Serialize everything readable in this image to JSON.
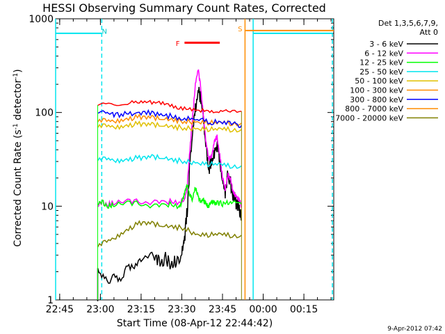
{
  "chart_data": {
    "type": "line",
    "title": "HESSI Observing Summary Count Rates, Corrected",
    "xlabel": "Start Time (08-Apr-12 22:44:42)",
    "ylabel_main": "Corrected Count Rate (s",
    "ylabel_sup1": "-1",
    "ylabel_mid": " detector",
    "ylabel_sup2": "-1",
    "ylabel_end": ")",
    "yscale": "log",
    "ylim": [
      1,
      1000
    ],
    "xlim_minutes": [
      -1.5,
      101
    ],
    "x_ticks": [
      {
        "label": "22:45",
        "m": 0
      },
      {
        "label": "23:00",
        "m": 15
      },
      {
        "label": "23:15",
        "m": 30
      },
      {
        "label": "23:30",
        "m": 45
      },
      {
        "label": "23:45",
        "m": 60
      },
      {
        "label": "00:00",
        "m": 75
      },
      {
        "label": "00:15",
        "m": 90
      }
    ],
    "y_ticks": [
      {
        "label": "1",
        "v": 1
      },
      {
        "label": "10",
        "v": 10
      },
      {
        "label": "100",
        "v": 100
      },
      {
        "label": "1000",
        "v": 1000
      }
    ],
    "legend_header": [
      "Det 1,3,5,6,7,9,",
      "Att 0"
    ],
    "series": [
      {
        "name": "3 - 6 keV",
        "color": "#000000",
        "points": [
          [
            14,
            1
          ],
          [
            14,
            2
          ],
          [
            17,
            1.5
          ],
          [
            20,
            2.2
          ],
          [
            23,
            1.6
          ],
          [
            26,
            2.4
          ],
          [
            29,
            2.8
          ],
          [
            32,
            2.5
          ],
          [
            35,
            3.0
          ],
          [
            37,
            2.6
          ],
          [
            39,
            2.8
          ],
          [
            41,
            2.5
          ],
          [
            43,
            2.6
          ],
          [
            45,
            3.0
          ],
          [
            46,
            4.5
          ],
          [
            47,
            9
          ],
          [
            48,
            30
          ],
          [
            49,
            60
          ],
          [
            50,
            110
          ],
          [
            51,
            170
          ],
          [
            52,
            140
          ],
          [
            53,
            80
          ],
          [
            54,
            40
          ],
          [
            55,
            25
          ],
          [
            56,
            30
          ],
          [
            57,
            38
          ],
          [
            58,
            45
          ],
          [
            59,
            30
          ],
          [
            60,
            18
          ],
          [
            61,
            14
          ],
          [
            62,
            22
          ],
          [
            63,
            18
          ],
          [
            64,
            12
          ],
          [
            65,
            11
          ],
          [
            66,
            10
          ],
          [
            67,
            7
          ]
        ]
      },
      {
        "name": "6 - 12 keV",
        "color": "#ff00ff",
        "points": [
          [
            14,
            10
          ],
          [
            16,
            11
          ],
          [
            18,
            10.5
          ],
          [
            20,
            11
          ],
          [
            25,
            11.5
          ],
          [
            30,
            11
          ],
          [
            35,
            11
          ],
          [
            40,
            11.2
          ],
          [
            44,
            11
          ],
          [
            46,
            12
          ],
          [
            47,
            16
          ],
          [
            48,
            40
          ],
          [
            49,
            90
          ],
          [
            50,
            200
          ],
          [
            51,
            290
          ],
          [
            52,
            180
          ],
          [
            53,
            90
          ],
          [
            54,
            45
          ],
          [
            55,
            32
          ],
          [
            56,
            34
          ],
          [
            57,
            48
          ],
          [
            58,
            55
          ],
          [
            59,
            35
          ],
          [
            60,
            20
          ],
          [
            61,
            15
          ],
          [
            62,
            22
          ],
          [
            63,
            19
          ],
          [
            64,
            14
          ],
          [
            65,
            13
          ],
          [
            66,
            12
          ],
          [
            67,
            10
          ]
        ]
      },
      {
        "name": "12 - 25 keV",
        "color": "#00ff00",
        "points": [
          [
            14,
            10.5
          ],
          [
            16,
            11
          ],
          [
            18,
            10
          ],
          [
            20,
            10.5
          ],
          [
            25,
            11
          ],
          [
            30,
            10.5
          ],
          [
            35,
            10
          ],
          [
            40,
            10.5
          ],
          [
            44,
            10
          ],
          [
            45,
            11
          ],
          [
            46,
            14
          ],
          [
            47,
            17
          ],
          [
            48,
            13
          ],
          [
            49,
            12
          ],
          [
            50,
            16
          ],
          [
            51,
            13
          ],
          [
            52,
            11
          ],
          [
            53,
            11.5
          ],
          [
            54,
            10.5
          ],
          [
            55,
            10
          ],
          [
            56,
            11
          ],
          [
            57,
            10.8
          ],
          [
            58,
            11
          ],
          [
            60,
            10.5
          ],
          [
            62,
            11
          ],
          [
            64,
            10.8
          ],
          [
            67,
            10.5
          ]
        ]
      },
      {
        "name": "25 - 50 keV",
        "color": "#00e5ee",
        "points": [
          [
            14,
            31
          ],
          [
            18,
            32
          ],
          [
            22,
            31
          ],
          [
            26,
            32
          ],
          [
            30,
            33
          ],
          [
            34,
            34
          ],
          [
            38,
            33
          ],
          [
            42,
            31
          ],
          [
            46,
            30
          ],
          [
            50,
            29
          ],
          [
            54,
            28
          ],
          [
            58,
            28
          ],
          [
            62,
            27
          ],
          [
            67,
            27
          ]
        ]
      },
      {
        "name": "50 - 100 keV",
        "color": "#e0c000",
        "points": [
          [
            14,
            70
          ],
          [
            18,
            72
          ],
          [
            22,
            71
          ],
          [
            26,
            74
          ],
          [
            30,
            76
          ],
          [
            34,
            75
          ],
          [
            38,
            73
          ],
          [
            42,
            70
          ],
          [
            46,
            68
          ],
          [
            50,
            67
          ],
          [
            54,
            66
          ],
          [
            58,
            66
          ],
          [
            62,
            66
          ],
          [
            67,
            66
          ]
        ]
      },
      {
        "name": "100 - 300 keV",
        "color": "#ff8c00",
        "points": [
          [
            14,
            80
          ],
          [
            18,
            82
          ],
          [
            22,
            83
          ],
          [
            26,
            87
          ],
          [
            30,
            90
          ],
          [
            34,
            89
          ],
          [
            38,
            86
          ],
          [
            42,
            83
          ],
          [
            46,
            80
          ],
          [
            50,
            79
          ],
          [
            54,
            78
          ],
          [
            58,
            77
          ],
          [
            62,
            77
          ],
          [
            67,
            77
          ]
        ]
      },
      {
        "name": "300 - 800 keV",
        "color": "#0000ff",
        "points": [
          [
            14,
            100
          ],
          [
            17,
            97
          ],
          [
            20,
            94
          ],
          [
            24,
            96
          ],
          [
            28,
            100
          ],
          [
            32,
            101
          ],
          [
            36,
            97
          ],
          [
            40,
            92
          ],
          [
            44,
            88
          ],
          [
            48,
            85
          ],
          [
            52,
            82
          ],
          [
            56,
            79
          ],
          [
            60,
            77
          ],
          [
            64,
            75
          ],
          [
            67,
            73
          ]
        ]
      },
      {
        "name": "800 - 7000 keV",
        "color": "#ff8c00",
        "points": [
          [
            0,
            780
          ],
          [
            0.5,
            770
          ]
        ]
      },
      {
        "name": "7000 - 20000 keV",
        "color": "#808000",
        "points": [
          [
            14,
            3.7
          ],
          [
            18,
            4.3
          ],
          [
            22,
            5.0
          ],
          [
            26,
            5.9
          ],
          [
            30,
            6.7
          ],
          [
            34,
            6.6
          ],
          [
            38,
            6.2
          ],
          [
            42,
            6.0
          ],
          [
            46,
            5.8
          ],
          [
            50,
            5.0
          ],
          [
            54,
            4.9
          ],
          [
            58,
            5.0
          ],
          [
            62,
            4.9
          ],
          [
            67,
            4.9
          ]
        ]
      }
    ],
    "red_top": {
      "points": [
        [
          14,
          120
        ],
        [
          20,
          123
        ],
        [
          26,
          127
        ],
        [
          30,
          131
        ],
        [
          34,
          128
        ],
        [
          38,
          125
        ],
        [
          42,
          116
        ],
        [
          46,
          110
        ],
        [
          50,
          106
        ],
        [
          54,
          104
        ],
        [
          58,
          104
        ],
        [
          62,
          103
        ],
        [
          67,
          103
        ]
      ],
      "color": "#ff0000"
    },
    "cyan_top": [
      [
        -1.5,
        700
      ],
      [
        15.5,
        700
      ],
      [
        75,
        700
      ],
      [
        75,
        700
      ]
    ],
    "orange_top": [
      [
        68.5,
        750
      ],
      [
        101,
        750
      ]
    ],
    "annotations": [
      {
        "text": "N",
        "m": 16.5,
        "v": 740,
        "color": "#00c8c8"
      },
      {
        "text": "S",
        "m": 66.5,
        "v": 790,
        "color": "#ff8c00"
      },
      {
        "text": "F",
        "m": 43.5,
        "v": 550,
        "color": "#ff0000"
      }
    ],
    "flare_bar": {
      "m_start": 46,
      "m_end": 59,
      "v": 555,
      "color": "#ff0000"
    },
    "vlines": [
      {
        "m": -1.5,
        "color": "#00e5ee",
        "dashed": false
      },
      {
        "m": 15.5,
        "color": "#00e5ee",
        "dashed": true
      },
      {
        "m": 68.3,
        "color": "#ff8c00",
        "dashed": false
      },
      {
        "m": 71.3,
        "color": "#00e5ee",
        "dashed": false
      },
      {
        "m": 100.5,
        "color": "#00e5ee",
        "dashed": true
      }
    ]
  },
  "footer": {
    "date": "9-Apr-2012 07:42"
  }
}
